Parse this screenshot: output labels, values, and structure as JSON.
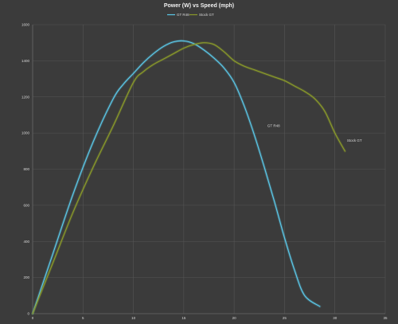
{
  "chart_data": {
    "type": "line",
    "title": "Power (W) vs Speed (mph)",
    "xlim": [
      0,
      35
    ],
    "ylim": [
      0,
      1600
    ],
    "x_ticks": [
      0,
      5,
      10,
      15,
      20,
      25,
      30,
      35
    ],
    "y_ticks": [
      0,
      200,
      400,
      600,
      800,
      1000,
      1200,
      1400,
      1600
    ],
    "grid": true,
    "legend_position": "top",
    "series": [
      {
        "name": "GT R48",
        "color": "#5bc8e8",
        "x": [
          0,
          2,
          4,
          6,
          8,
          9,
          10,
          11,
          12,
          13,
          14,
          15,
          16,
          17,
          18,
          19,
          20,
          21,
          22,
          23,
          24,
          25,
          26,
          27,
          28.5
        ],
        "y": [
          0,
          330,
          660,
          950,
          1190,
          1270,
          1330,
          1390,
          1440,
          1480,
          1505,
          1510,
          1495,
          1460,
          1415,
          1360,
          1280,
          1150,
          990,
          810,
          620,
          420,
          240,
          100,
          40
        ]
      },
      {
        "name": "Stock GT",
        "color": "#8a9a2a",
        "x": [
          0,
          2,
          4,
          6,
          8,
          10,
          11,
          12,
          13,
          14,
          15,
          16,
          17,
          18,
          19,
          20,
          21,
          22,
          23,
          24,
          25,
          26,
          27,
          28,
          29,
          30,
          31
        ],
        "y": [
          0,
          280,
          560,
          810,
          1040,
          1280,
          1340,
          1380,
          1410,
          1440,
          1470,
          1490,
          1500,
          1490,
          1450,
          1400,
          1370,
          1350,
          1330,
          1310,
          1290,
          1260,
          1230,
          1190,
          1120,
          1000,
          900
        ]
      }
    ],
    "annotations": [
      {
        "text": "GT R48",
        "x": 23.3,
        "y": 980
      },
      {
        "text": "Stock GT",
        "x": 31.2,
        "y": 900
      }
    ]
  }
}
